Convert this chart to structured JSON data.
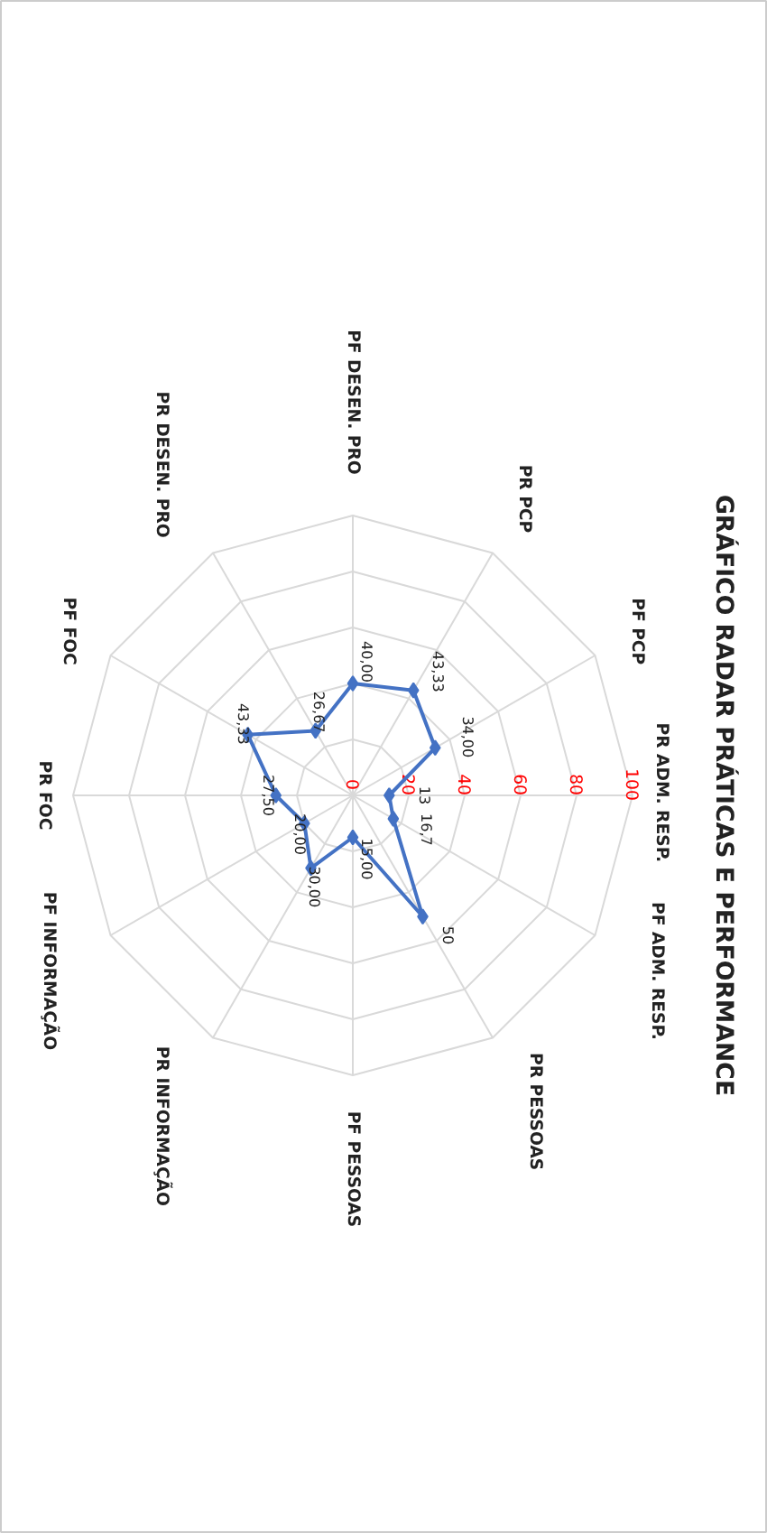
{
  "chart_data": {
    "type": "radar",
    "title": "GRÁFICO RADAR PRÁTICAS E PERFORMANCE",
    "categories": [
      "PR  ADM. RESP.",
      "PF ADM. RESP.",
      "PR PESSOAS",
      "PF PESSOAS",
      "PR INFORMAÇÃO",
      "PF INFORMAÇÃO",
      "PR FOC",
      "PF FOC",
      "PR DESEN. PRO",
      "PF DESEN. PRO",
      "PR PCP",
      "PF PCP"
    ],
    "series": [
      {
        "color": "#4472c4",
        "values": [
          13,
          16.7,
          50,
          15,
          30,
          20,
          27.5,
          43.33,
          26.67,
          40,
          43.33,
          34
        ],
        "value_labels": [
          "13",
          "16,7",
          "50",
          "15,00",
          "30,00",
          "20,00",
          "27,50",
          "43,33",
          "26,67",
          "40,00",
          "43,33",
          "34,00"
        ]
      }
    ],
    "ylim": [
      0,
      100
    ],
    "yticks": [
      0,
      20,
      40,
      60,
      80,
      100
    ],
    "grid": true,
    "marker": "diamond"
  }
}
